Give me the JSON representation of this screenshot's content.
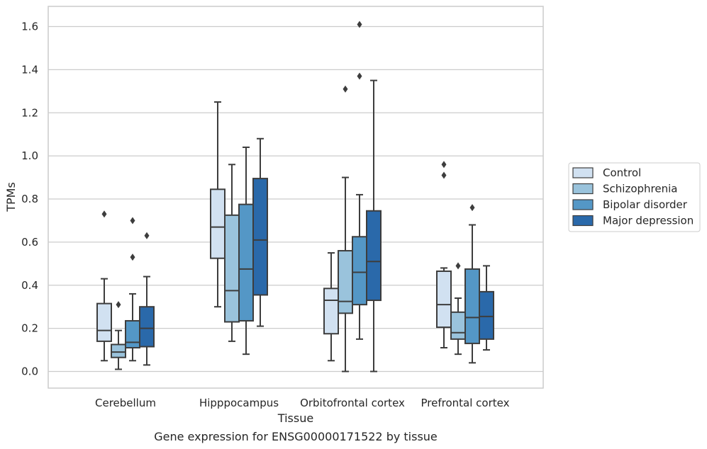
{
  "chart_data": {
    "type": "box",
    "caption": "Gene expression for ENSG00000171522 by tissue",
    "xlabel": "Tissue",
    "ylabel": "TPMs",
    "ylim": [
      -0.08,
      1.69
    ],
    "yticks": [
      "0.0",
      "0.2",
      "0.4",
      "0.6",
      "0.8",
      "1.0",
      "1.2",
      "1.4",
      "1.6"
    ],
    "ytick_values": [
      0.0,
      0.2,
      0.4,
      0.6,
      0.8,
      1.0,
      1.2,
      1.4,
      1.6
    ],
    "grid": "horizontal",
    "legend_placement": "right",
    "categories": [
      "Cerebellum",
      "Hipppocampus",
      "Orbitofrontal cortex",
      "Prefrontal cortex"
    ],
    "series": [
      {
        "name": "Control",
        "color": "#d1e1f1",
        "boxes": [
          {
            "whisker_low": 0.05,
            "q1": 0.14,
            "median": 0.19,
            "q3": 0.315,
            "whisker_high": 0.43,
            "outliers": [
              0.73
            ]
          },
          {
            "whisker_low": 0.3,
            "q1": 0.525,
            "median": 0.67,
            "q3": 0.845,
            "whisker_high": 1.25,
            "outliers": []
          },
          {
            "whisker_low": 0.05,
            "q1": 0.175,
            "median": 0.33,
            "q3": 0.385,
            "whisker_high": 0.55,
            "outliers": []
          },
          {
            "whisker_low": 0.11,
            "q1": 0.205,
            "median": 0.31,
            "q3": 0.465,
            "whisker_high": 0.48,
            "outliers": [
              0.91,
              0.96
            ]
          }
        ]
      },
      {
        "name": "Schizophrenia",
        "color": "#9ac3dc",
        "boxes": [
          {
            "whisker_low": 0.01,
            "q1": 0.065,
            "median": 0.09,
            "q3": 0.125,
            "whisker_high": 0.19,
            "outliers": [
              0.31
            ]
          },
          {
            "whisker_low": 0.14,
            "q1": 0.23,
            "median": 0.375,
            "q3": 0.725,
            "whisker_high": 0.96,
            "outliers": []
          },
          {
            "whisker_low": 0.0,
            "q1": 0.27,
            "median": 0.325,
            "q3": 0.56,
            "whisker_high": 0.9,
            "outliers": [
              1.31
            ]
          },
          {
            "whisker_low": 0.08,
            "q1": 0.15,
            "median": 0.18,
            "q3": 0.275,
            "whisker_high": 0.34,
            "outliers": [
              0.49
            ]
          }
        ]
      },
      {
        "name": "Bipolar disorder",
        "color": "#5497c6",
        "boxes": [
          {
            "whisker_low": 0.05,
            "q1": 0.11,
            "median": 0.135,
            "q3": 0.235,
            "whisker_high": 0.36,
            "outliers": [
              0.53,
              0.7
            ]
          },
          {
            "whisker_low": 0.08,
            "q1": 0.235,
            "median": 0.475,
            "q3": 0.775,
            "whisker_high": 1.04,
            "outliers": []
          },
          {
            "whisker_low": 0.15,
            "q1": 0.31,
            "median": 0.46,
            "q3": 0.625,
            "whisker_high": 0.82,
            "outliers": [
              1.37,
              1.61
            ]
          },
          {
            "whisker_low": 0.04,
            "q1": 0.13,
            "median": 0.25,
            "q3": 0.475,
            "whisker_high": 0.68,
            "outliers": [
              0.76
            ]
          }
        ]
      },
      {
        "name": "Major depression",
        "color": "#2a69aa",
        "boxes": [
          {
            "whisker_low": 0.03,
            "q1": 0.115,
            "median": 0.2,
            "q3": 0.3,
            "whisker_high": 0.44,
            "outliers": [
              0.63
            ]
          },
          {
            "whisker_low": 0.21,
            "q1": 0.355,
            "median": 0.61,
            "q3": 0.895,
            "whisker_high": 1.08,
            "outliers": []
          },
          {
            "whisker_low": 0.0,
            "q1": 0.33,
            "median": 0.51,
            "q3": 0.745,
            "whisker_high": 1.35,
            "outliers": []
          },
          {
            "whisker_low": 0.1,
            "q1": 0.15,
            "median": 0.255,
            "q3": 0.37,
            "whisker_high": 0.49,
            "outliers": []
          }
        ]
      }
    ]
  }
}
